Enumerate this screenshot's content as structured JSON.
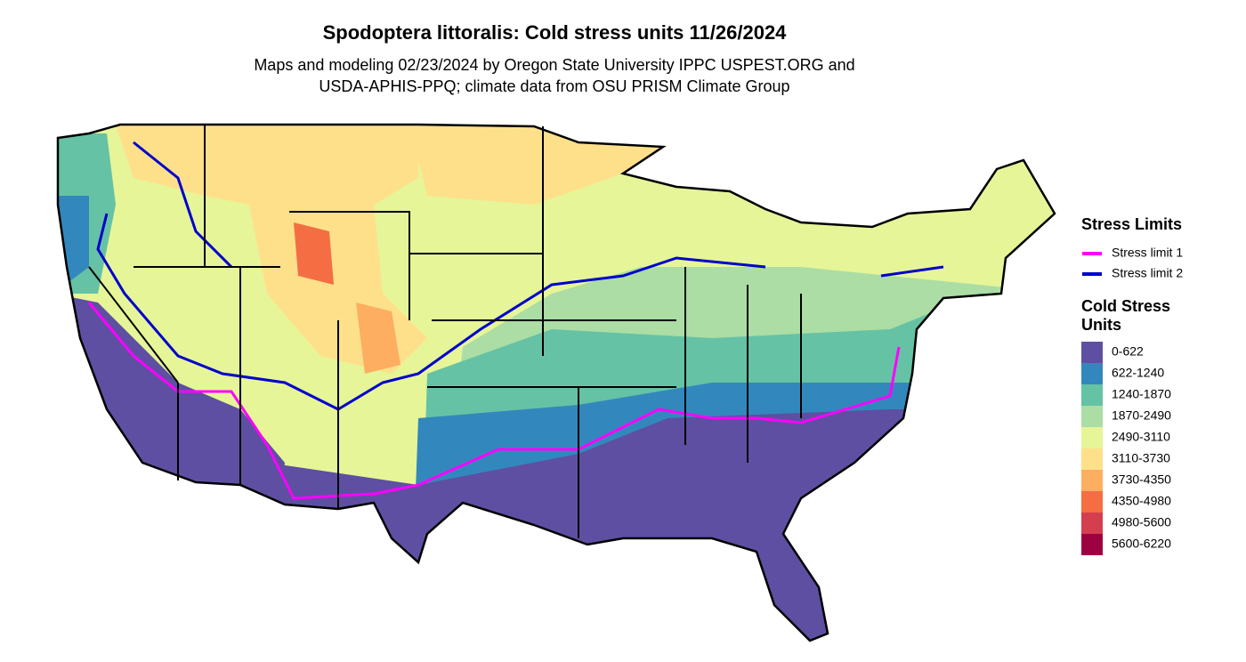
{
  "header": {
    "title": "Spodoptera littoralis: Cold stress units 11/26/2024",
    "subtitle_lines": [
      "Maps and modeling 02/23/2024 by Oregon State University IPPC USPEST.ORG and",
      "USDA-APHIS-PPQ; climate data from OSU PRISM Climate Group"
    ]
  },
  "stress_legend": {
    "title": "Stress Limits",
    "items": [
      {
        "label": "Stress limit 1",
        "color": "#ff00ff"
      },
      {
        "label": "Stress limit 2",
        "color": "#0000cd"
      }
    ]
  },
  "units_legend": {
    "title": "Cold Stress Units",
    "items": [
      {
        "label": "0-622",
        "color": "#5e4fa2"
      },
      {
        "label": "622-1240",
        "color": "#3288bd"
      },
      {
        "label": "1240-1870",
        "color": "#66c2a5"
      },
      {
        "label": "1870-2490",
        "color": "#abdda4"
      },
      {
        "label": "2490-3110",
        "color": "#e6f598"
      },
      {
        "label": "3110-3730",
        "color": "#fee08b"
      },
      {
        "label": "3730-4350",
        "color": "#fdae61"
      },
      {
        "label": "4350-4980",
        "color": "#f46d43"
      },
      {
        "label": "4980-5600",
        "color": "#d53e4f"
      },
      {
        "label": "5600-6220",
        "color": "#9e0142"
      }
    ]
  }
}
